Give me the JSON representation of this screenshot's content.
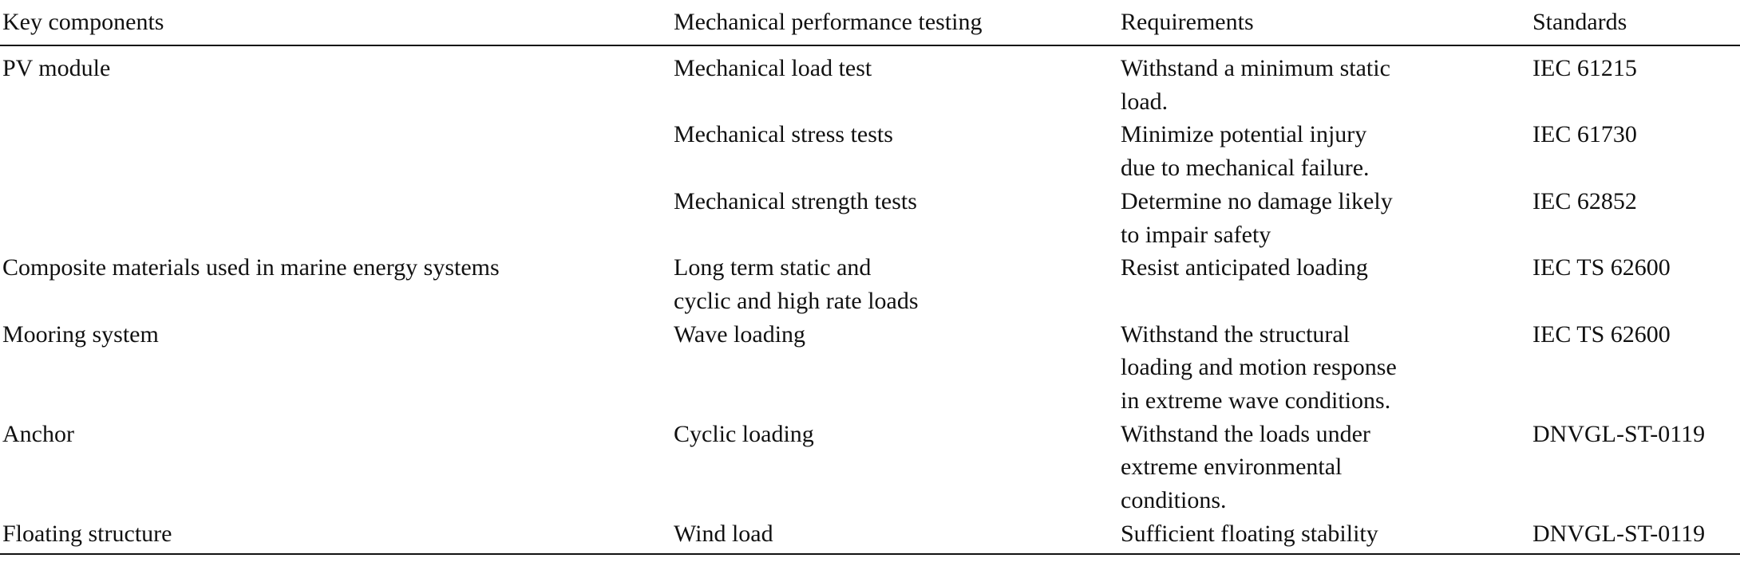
{
  "table": {
    "header": [
      "Key components",
      "Mechanical performance testing",
      "Requirements",
      "Standards"
    ],
    "groups": [
      {
        "component": "PV module",
        "tests": [
          {
            "testing": [
              "Mechanical load test"
            ],
            "requirements": [
              "Withstand a minimum static",
              "load."
            ],
            "standard": "IEC 61215"
          },
          {
            "testing": [
              "Mechanical stress tests"
            ],
            "requirements": [
              "Minimize potential injury",
              "due to mechanical failure."
            ],
            "standard": "IEC 61730"
          },
          {
            "testing": [
              "Mechanical strength tests"
            ],
            "requirements": [
              "Determine no damage likely",
              "to impair safety"
            ],
            "standard": "IEC 62852"
          }
        ]
      },
      {
        "component": "Composite materials used in marine energy systems",
        "tests": [
          {
            "testing": [
              "Long term static and",
              "cyclic and high rate loads"
            ],
            "requirements": [
              "Resist anticipated loading"
            ],
            "standard": "IEC TS 62600"
          }
        ]
      },
      {
        "component": "Mooring system",
        "tests": [
          {
            "testing": [
              "Wave loading"
            ],
            "requirements": [
              "Withstand the structural",
              "loading and motion response",
              "in extreme wave conditions."
            ],
            "standard": "IEC TS 62600"
          }
        ]
      },
      {
        "component": "Anchor",
        "tests": [
          {
            "testing": [
              "Cyclic loading"
            ],
            "requirements": [
              "Withstand the loads under",
              "extreme environmental",
              "conditions."
            ],
            "standard": "DNVGL-ST-0119"
          }
        ]
      },
      {
        "component": "Floating structure",
        "tests": [
          {
            "testing": [
              "Wind load"
            ],
            "requirements": [
              "Sufficient floating stability"
            ],
            "standard": "DNVGL-ST-0119"
          }
        ]
      }
    ]
  }
}
